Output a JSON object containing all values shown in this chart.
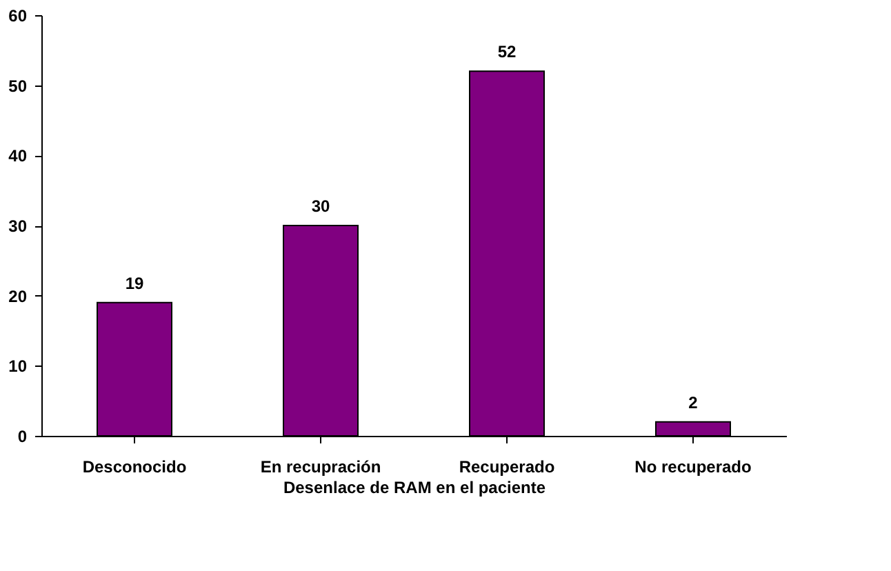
{
  "chart_data": {
    "type": "bar",
    "xlabel": "Desenlace de RAM en el paciente",
    "categories": [
      "Desconocido",
      "En recupración",
      "Recuperado",
      "No recuperado"
    ],
    "values": [
      19,
      30,
      52,
      2
    ],
    "color": "#800080",
    "ylim": [
      0,
      60
    ],
    "yticks": [
      0,
      10,
      20,
      30,
      40,
      50,
      60
    ],
    "grid": false,
    "data_labels": true
  }
}
